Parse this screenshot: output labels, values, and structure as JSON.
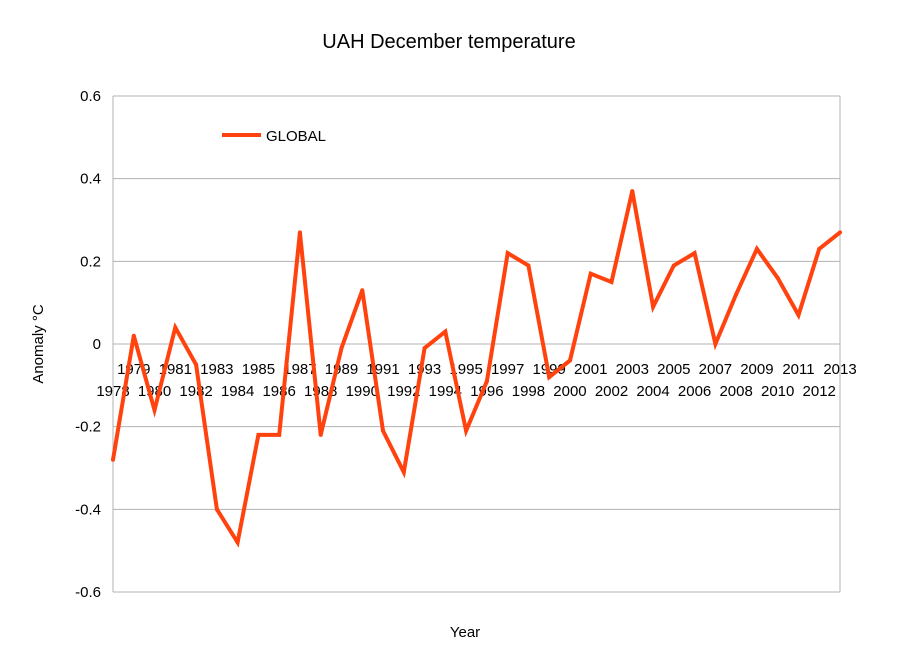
{
  "chart_data": {
    "type": "line",
    "title": "UAH December temperature",
    "xlabel": "Year",
    "ylabel": "Anomaly °C",
    "ylim": [
      -0.6,
      0.6
    ],
    "yticks": [
      "-0.6",
      "-0.4",
      "-0.2",
      "0",
      "0.2",
      "0.4",
      "0.6"
    ],
    "grid": true,
    "legend_position": "top-left",
    "categories": [
      "1978",
      "1979",
      "1980",
      "1981",
      "1982",
      "1983",
      "1984",
      "1985",
      "1986",
      "1987",
      "1988",
      "1989",
      "1990",
      "1991",
      "1992",
      "1993",
      "1994",
      "1995",
      "1996",
      "1997",
      "1998",
      "1999",
      "2000",
      "2001",
      "2002",
      "2003",
      "2004",
      "2005",
      "2006",
      "2007",
      "2008",
      "2009",
      "2010",
      "2011",
      "2012",
      "2013"
    ],
    "series": [
      {
        "name": "GLOBAL",
        "color": "#ff420e",
        "values": [
          -0.28,
          0.02,
          -0.16,
          0.04,
          -0.05,
          -0.4,
          -0.48,
          -0.22,
          -0.22,
          0.27,
          -0.22,
          -0.01,
          0.13,
          -0.21,
          -0.31,
          -0.01,
          0.03,
          -0.21,
          -0.09,
          0.22,
          0.19,
          -0.08,
          -0.04,
          0.17,
          0.15,
          0.37,
          0.09,
          0.19,
          0.22,
          0.0,
          0.12,
          0.23,
          0.16,
          0.07,
          0.23,
          0.27
        ]
      }
    ]
  }
}
